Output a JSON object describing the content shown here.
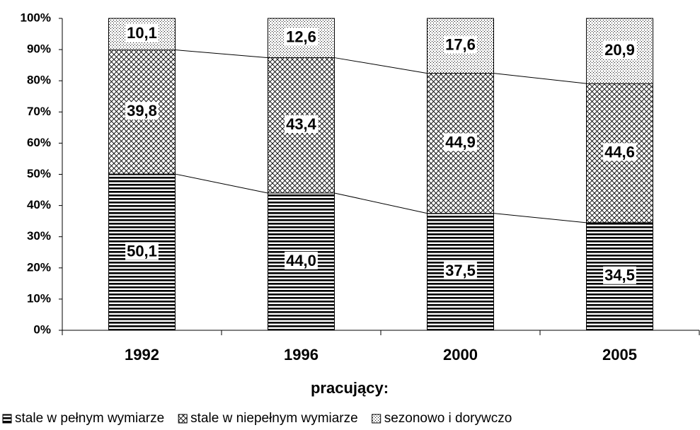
{
  "chart_data": {
    "type": "stacked-bar",
    "x_label": "pracujący:",
    "categories": [
      "1992",
      "1996",
      "2000",
      "2005"
    ],
    "series": [
      {
        "name": "stale w pełnym wymiarze",
        "color": "#000000",
        "pattern": "horizontal",
        "values": [
          50.1,
          44.0,
          37.5,
          34.5
        ],
        "value_labels": [
          "50,1",
          "44,0",
          "37,5",
          "34,5"
        ]
      },
      {
        "name": "stale w niepełnym wymiarze",
        "color": "#000000",
        "pattern": "crosshatch",
        "values": [
          39.8,
          43.4,
          44.9,
          44.6
        ],
        "value_labels": [
          "39,8",
          "43,4",
          "44,9",
          "44,6"
        ]
      },
      {
        "name": "sezonowo i dorywczo",
        "color": "#000000",
        "pattern": "dots",
        "values": [
          10.1,
          12.6,
          17.6,
          20.9
        ],
        "value_labels": [
          "10,1",
          "12,6",
          "17,6",
          "20,9"
        ]
      }
    ],
    "ylim": [
      0,
      100
    ],
    "yticks": [
      {
        "value": 0,
        "label": "0%"
      },
      {
        "value": 10,
        "label": "10%"
      },
      {
        "value": 20,
        "label": "20%"
      },
      {
        "value": 30,
        "label": "30%"
      },
      {
        "value": 40,
        "label": "40%"
      },
      {
        "value": 50,
        "label": "50%"
      },
      {
        "value": 60,
        "label": "60%"
      },
      {
        "value": 70,
        "label": "70%"
      },
      {
        "value": 80,
        "label": "80%"
      },
      {
        "value": 90,
        "label": "90%"
      },
      {
        "value": 100,
        "label": "100%"
      }
    ],
    "series_lines": true,
    "legend": "bottom"
  }
}
